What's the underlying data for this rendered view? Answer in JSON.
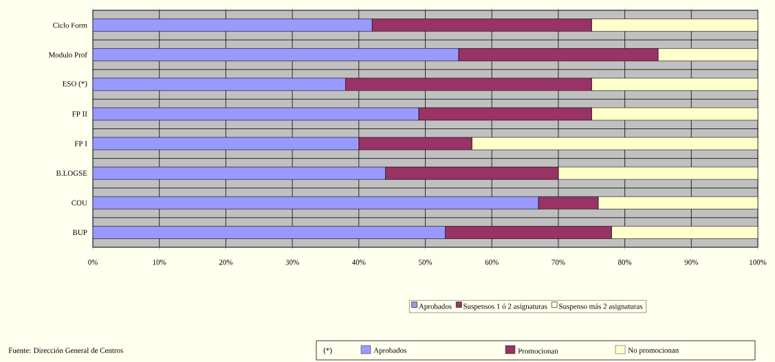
{
  "chart_data": {
    "type": "bar",
    "orientation": "horizontal",
    "stacked": true,
    "categories": [
      "Ciclo Form",
      "Modulo Prof",
      "ESO (*)",
      "FP II",
      "FP I",
      "B.LOGSE",
      "COU",
      "BUP"
    ],
    "series": [
      {
        "name": "Aprobados",
        "color": "#9999ff",
        "values": [
          42,
          55,
          38,
          49,
          40,
          44,
          67,
          53
        ]
      },
      {
        "name": "Suspensos 1 ó 2 asignaturas",
        "color": "#993366",
        "values": [
          33,
          30,
          37,
          26,
          17,
          26,
          9,
          25
        ]
      },
      {
        "name": "Suspenso más 2 asignaturas",
        "color": "#ffffcc",
        "values": [
          25,
          15,
          25,
          25,
          43,
          30,
          24,
          22
        ]
      }
    ],
    "xlim": [
      0,
      100
    ],
    "xticks": [
      {
        "value": 0,
        "label": "0%"
      },
      {
        "value": 10,
        "label": "10%"
      },
      {
        "value": 20,
        "label": "20%"
      },
      {
        "value": 30,
        "label": "30%"
      },
      {
        "value": 40,
        "label": "40%"
      },
      {
        "value": 50,
        "label": "50%"
      },
      {
        "value": 60,
        "label": "60%"
      },
      {
        "value": 70,
        "label": "70%"
      },
      {
        "value": 80,
        "label": "80%"
      },
      {
        "value": 90,
        "label": "90%"
      },
      {
        "value": 100,
        "label": "100%"
      }
    ],
    "grid": true,
    "legend": "bottom",
    "annotations": [
      "Fuente: Dirección General de Centros",
      "(*)",
      "Aprobados",
      "Promocionan",
      "No promocionan"
    ]
  }
}
